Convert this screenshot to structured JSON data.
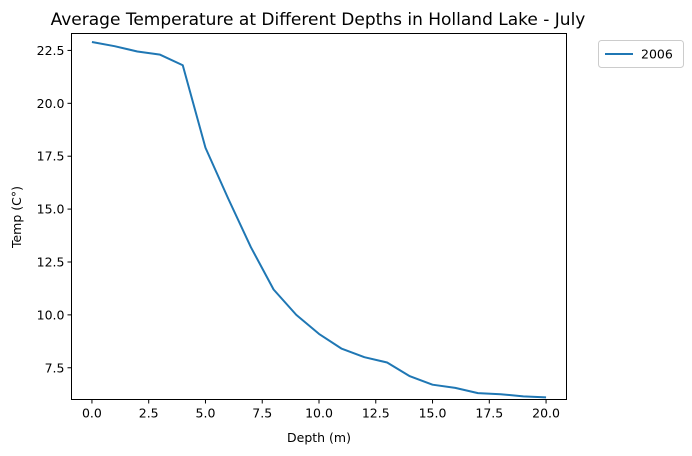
{
  "chart_data": {
    "type": "line",
    "title": "Average Temperature at Different Depths in Holland Lake - July",
    "xlabel": "Depth (m)",
    "ylabel": "Temp (C°)",
    "xlim": [
      -0.9,
      20.9
    ],
    "ylim": [
      6.0,
      23.3
    ],
    "xticks": [
      0.0,
      2.5,
      5.0,
      7.5,
      10.0,
      12.5,
      15.0,
      17.5,
      20.0
    ],
    "xtick_labels": [
      "0.0",
      "2.5",
      "5.0",
      "7.5",
      "10.0",
      "12.5",
      "15.0",
      "17.5",
      "20.0"
    ],
    "yticks": [
      7.5,
      10.0,
      12.5,
      15.0,
      17.5,
      20.0,
      22.5
    ],
    "ytick_labels": [
      "7.5",
      "10.0",
      "12.5",
      "15.0",
      "17.5",
      "20.0",
      "22.5"
    ],
    "grid": false,
    "legend_position": "outside-top-right",
    "series": [
      {
        "name": "2006",
        "color": "#1f77b4",
        "x": [
          0,
          1,
          2,
          3,
          4,
          5,
          6,
          7,
          8,
          9,
          10,
          11,
          12,
          13,
          14,
          15,
          16,
          17,
          18,
          19,
          20
        ],
        "y": [
          22.9,
          22.7,
          22.45,
          22.3,
          21.8,
          17.9,
          15.5,
          13.2,
          11.2,
          10.0,
          9.1,
          8.4,
          8.0,
          7.75,
          7.1,
          6.7,
          6.55,
          6.3,
          6.25,
          6.15,
          6.1
        ]
      }
    ]
  }
}
